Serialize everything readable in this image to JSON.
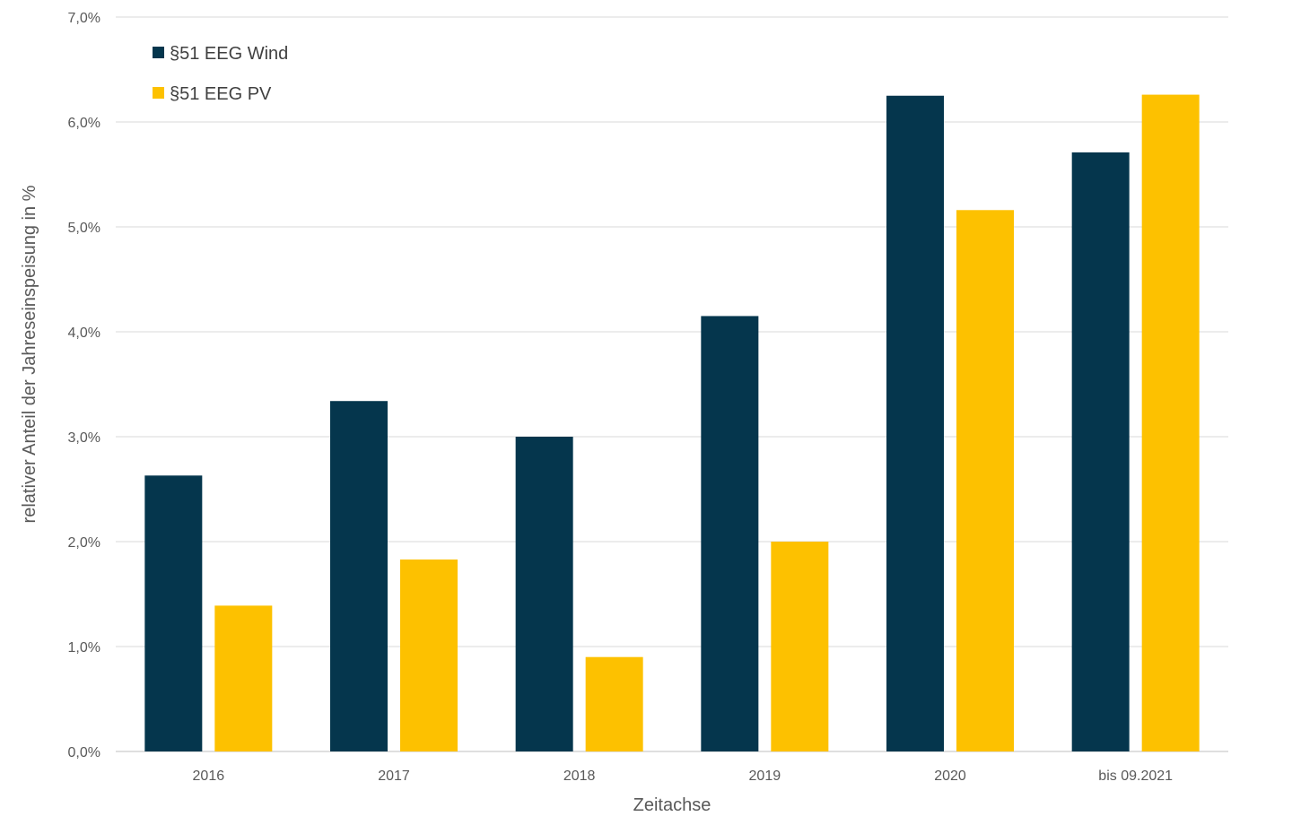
{
  "chart_data": {
    "type": "bar",
    "categories": [
      "2016",
      "2017",
      "2018",
      "2019",
      "2020",
      "bis 09.2021"
    ],
    "series": [
      {
        "name": "§51 EEG Wind",
        "color": "#05364d",
        "values": [
          2.63,
          3.34,
          3.0,
          4.15,
          6.25,
          5.71
        ]
      },
      {
        "name": "§51 EEG PV",
        "color": "#fdc100",
        "values": [
          1.39,
          1.83,
          0.9,
          2.0,
          5.16,
          6.26
        ]
      }
    ],
    "xlabel": "Zeitachse",
    "ylabel": "relativer Anteil der Jahreseinspeisung in %",
    "ylim": [
      0,
      7
    ],
    "yticks": [
      0,
      1,
      2,
      3,
      4,
      5,
      6,
      7
    ],
    "ytick_labels": [
      "0,0%",
      "1,0%",
      "2,0%",
      "3,0%",
      "4,0%",
      "5,0%",
      "6,0%",
      "7,0%"
    ],
    "grid": true,
    "legend_position": "top-left"
  }
}
